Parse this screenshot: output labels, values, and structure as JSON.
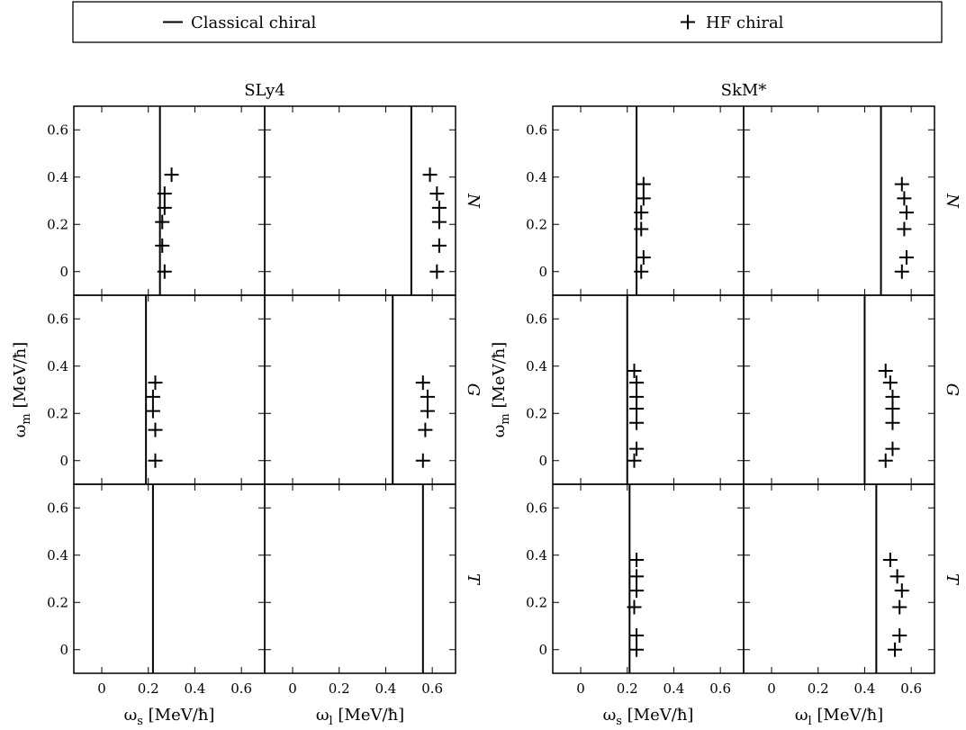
{
  "legend": {
    "placement": "top",
    "entries": [
      {
        "label": "Classical chiral",
        "marker": "line"
      },
      {
        "label": "HF chiral",
        "marker": "plus"
      }
    ]
  },
  "chart_data": {
    "type": "scatter",
    "groups": [
      {
        "title": "SLy4",
        "rows": [
          "N",
          "G",
          "T"
        ],
        "cols": [
          {
            "xlabel": "ω_s [MeV/ħ]",
            "xlim": [
              -0.12,
              0.7
            ],
            "xticks": [
              "0",
              "0.2",
              "0.4",
              "0.6"
            ],
            "xtick_values": [
              0,
              0.2,
              0.4,
              0.6
            ]
          },
          {
            "xlabel": "ω_l [MeV/ħ]",
            "xlim": [
              -0.12,
              0.7
            ],
            "xticks": [
              "0",
              "0.2",
              "0.4",
              "0.6"
            ],
            "xtick_values": [
              0,
              0.2,
              0.4,
              0.6
            ]
          }
        ],
        "panels": [
          {
            "row": "N",
            "col": "ω_s",
            "classical": 0.25,
            "hf": [
              [
                0.27,
                0.0
              ],
              [
                0.26,
                0.11
              ],
              [
                0.26,
                0.21
              ],
              [
                0.27,
                0.27
              ],
              [
                0.27,
                0.33
              ],
              [
                0.3,
                0.41
              ]
            ]
          },
          {
            "row": "N",
            "col": "ω_l",
            "classical": 0.51,
            "hf": [
              [
                0.62,
                0.0
              ],
              [
                0.63,
                0.11
              ],
              [
                0.63,
                0.21
              ],
              [
                0.63,
                0.27
              ],
              [
                0.62,
                0.33
              ],
              [
                0.59,
                0.41
              ]
            ]
          },
          {
            "row": "G",
            "col": "ω_s",
            "classical": 0.19,
            "hf": [
              [
                0.23,
                0.0
              ],
              [
                0.23,
                0.13
              ],
              [
                0.22,
                0.21
              ],
              [
                0.22,
                0.27
              ],
              [
                0.23,
                0.33
              ]
            ]
          },
          {
            "row": "G",
            "col": "ω_l",
            "classical": 0.43,
            "hf": [
              [
                0.56,
                0.0
              ],
              [
                0.57,
                0.13
              ],
              [
                0.58,
                0.21
              ],
              [
                0.58,
                0.27
              ],
              [
                0.56,
                0.33
              ]
            ]
          },
          {
            "row": "T",
            "col": "ω_s",
            "classical": 0.22,
            "hf": []
          },
          {
            "row": "T",
            "col": "ω_l",
            "classical": 0.56,
            "hf": []
          }
        ]
      },
      {
        "title": "SkM*",
        "rows": [
          "N",
          "G",
          "T"
        ],
        "cols": [
          {
            "xlabel": "ω_s [MeV/ħ]",
            "xlim": [
              -0.12,
              0.7
            ],
            "xticks": [
              "0",
              "0.2",
              "0.4",
              "0.6"
            ],
            "xtick_values": [
              0,
              0.2,
              0.4,
              0.6
            ]
          },
          {
            "xlabel": "ω_l [MeV/ħ]",
            "xlim": [
              -0.12,
              0.7
            ],
            "xticks": [
              "0",
              "0.2",
              "0.4",
              "0.6"
            ],
            "xtick_values": [
              0,
              0.2,
              0.4,
              0.6
            ]
          }
        ],
        "panels": [
          {
            "row": "N",
            "col": "ω_s",
            "classical": 0.24,
            "hf": [
              [
                0.26,
                0.0
              ],
              [
                0.27,
                0.06
              ],
              [
                0.26,
                0.18
              ],
              [
                0.26,
                0.25
              ],
              [
                0.27,
                0.31
              ],
              [
                0.27,
                0.37
              ]
            ]
          },
          {
            "row": "N",
            "col": "ω_l",
            "classical": 0.47,
            "hf": [
              [
                0.56,
                0.0
              ],
              [
                0.58,
                0.06
              ],
              [
                0.57,
                0.18
              ],
              [
                0.58,
                0.25
              ],
              [
                0.57,
                0.31
              ],
              [
                0.56,
                0.37
              ]
            ]
          },
          {
            "row": "G",
            "col": "ω_s",
            "classical": 0.2,
            "hf": [
              [
                0.23,
                0.0
              ],
              [
                0.24,
                0.05
              ],
              [
                0.24,
                0.16
              ],
              [
                0.24,
                0.22
              ],
              [
                0.24,
                0.27
              ],
              [
                0.24,
                0.33
              ],
              [
                0.23,
                0.38
              ]
            ]
          },
          {
            "row": "G",
            "col": "ω_l",
            "classical": 0.4,
            "hf": [
              [
                0.49,
                0.0
              ],
              [
                0.52,
                0.05
              ],
              [
                0.52,
                0.16
              ],
              [
                0.52,
                0.22
              ],
              [
                0.52,
                0.27
              ],
              [
                0.51,
                0.33
              ],
              [
                0.49,
                0.38
              ]
            ]
          },
          {
            "row": "T",
            "col": "ω_s",
            "classical": 0.21,
            "hf": [
              [
                0.24,
                0.0
              ],
              [
                0.24,
                0.06
              ],
              [
                0.23,
                0.18
              ],
              [
                0.24,
                0.25
              ],
              [
                0.24,
                0.31
              ],
              [
                0.24,
                0.38
              ]
            ]
          },
          {
            "row": "T",
            "col": "ω_l",
            "classical": 0.45,
            "hf": [
              [
                0.53,
                0.0
              ],
              [
                0.55,
                0.06
              ],
              [
                0.55,
                0.18
              ],
              [
                0.56,
                0.25
              ],
              [
                0.54,
                0.31
              ],
              [
                0.51,
                0.38
              ]
            ]
          }
        ]
      }
    ],
    "ylabel": "ω_m [MeV/ħ]",
    "ylim": [
      -0.1,
      0.7
    ],
    "yticks": [
      "0",
      "0.2",
      "0.4",
      "0.6"
    ],
    "ytick_values": [
      0,
      0.2,
      0.4,
      0.6
    ],
    "grid": false
  }
}
